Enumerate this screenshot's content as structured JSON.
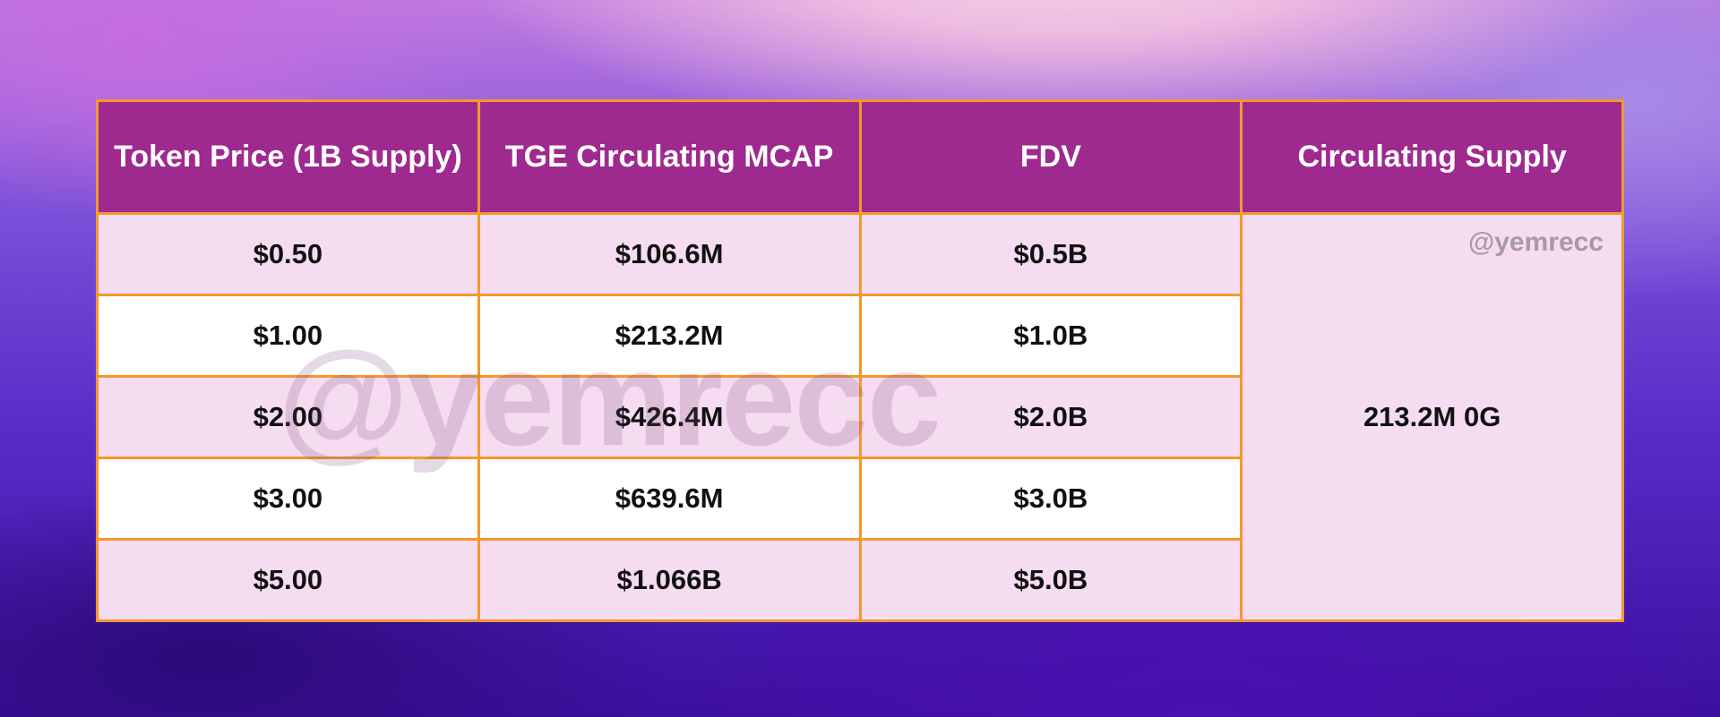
{
  "chart_data": {
    "type": "table",
    "columns": [
      "Token Price (1B Supply)",
      "TGE Circulating MCAP",
      "FDV",
      "Circulating Supply"
    ],
    "rows": [
      [
        "$0.50",
        "$106.6M",
        "$0.5B"
      ],
      [
        "$1.00",
        "$213.2M",
        "$1.0B"
      ],
      [
        "$2.00",
        "$426.4M",
        "$2.0B"
      ],
      [
        "$3.00",
        "$639.6M",
        "$3.0B"
      ],
      [
        "$5.00",
        "$1.066B",
        "$5.0B"
      ]
    ],
    "merged_cell": "213.2M 0G"
  },
  "watermark": {
    "small": "@yemrecc",
    "large": "@yemrecc"
  },
  "colors": {
    "header_bg": "#9e2a90",
    "border": "#f5982c",
    "row_alt": "#f5dcf1",
    "row_white": "#ffffff"
  }
}
